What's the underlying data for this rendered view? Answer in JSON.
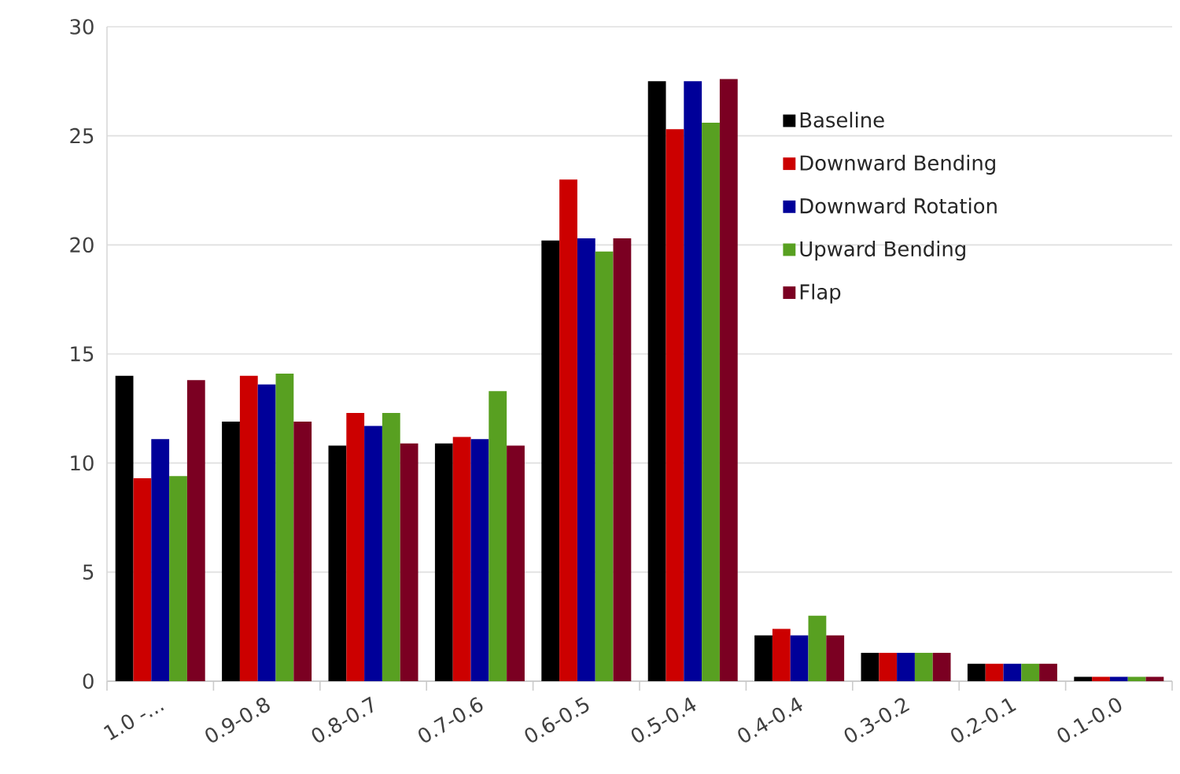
{
  "chart_data": {
    "type": "bar",
    "categories": [
      "1.0 -...",
      "0.9-0.8",
      "0.8-0.7",
      "0.7-0.6",
      "0.6-0.5",
      "0.5-0.4",
      "0.4-0.4",
      "0.3-0.2",
      "0.2-0.1",
      "0.1-0.0"
    ],
    "series": [
      {
        "name": "Baseline",
        "color": "#000000",
        "values": [
          14.0,
          11.9,
          10.8,
          10.9,
          20.2,
          27.5,
          2.1,
          1.3,
          0.8,
          0.2
        ]
      },
      {
        "name": "Downward Bending",
        "color": "#cc0000",
        "values": [
          9.3,
          14.0,
          12.3,
          11.2,
          23.0,
          25.3,
          2.4,
          1.3,
          0.8,
          0.2
        ]
      },
      {
        "name": "Downward Rotation",
        "color": "#000099",
        "values": [
          11.1,
          13.6,
          11.7,
          11.1,
          20.3,
          27.5,
          2.1,
          1.3,
          0.8,
          0.2
        ]
      },
      {
        "name": "Upward Bending",
        "color": "#58a021",
        "values": [
          9.4,
          14.1,
          12.3,
          13.3,
          19.7,
          25.6,
          3.0,
          1.3,
          0.8,
          0.2
        ]
      },
      {
        "name": "Flap",
        "color": "#7b0022",
        "values": [
          13.8,
          11.9,
          10.9,
          10.8,
          20.3,
          27.6,
          2.1,
          1.3,
          0.8,
          0.2
        ]
      }
    ],
    "ylim": [
      0,
      30
    ],
    "yticks": [
      0,
      5,
      10,
      15,
      20,
      25,
      30
    ],
    "grid": "y",
    "legend": "right"
  }
}
